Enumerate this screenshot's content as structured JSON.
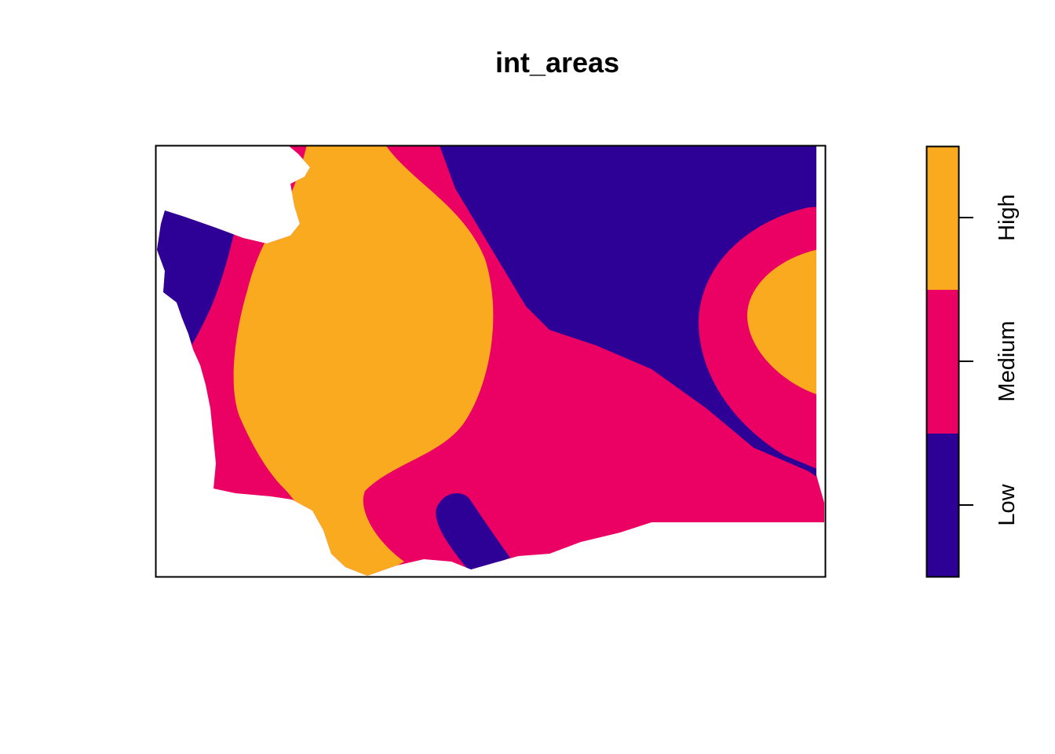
{
  "title": "int_areas",
  "colors": {
    "low": "#2D0096",
    "medium": "#EB0064",
    "high": "#FAAA1E",
    "background": "#FFFFFF",
    "frame": "#000000"
  },
  "legend": {
    "classes": [
      {
        "key": "low",
        "label": "Low"
      },
      {
        "key": "medium",
        "label": "Medium"
      },
      {
        "key": "high",
        "label": "High"
      }
    ]
  }
}
